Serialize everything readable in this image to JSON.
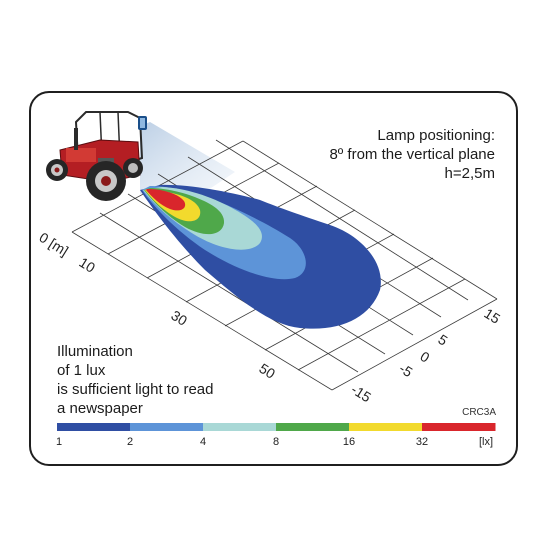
{
  "notes": {
    "lamp": [
      "Lamp positioning:",
      "8º from the vertical plane",
      "h=2,5m"
    ],
    "illumination": [
      "Illumination",
      "of 1 lux",
      "is sufficient light to read",
      "a newspaper"
    ]
  },
  "code": "CRC3A",
  "axis_distance": {
    "labels": [
      "0 [m]",
      "10",
      "30",
      "50"
    ]
  },
  "axis_lateral": {
    "labels": [
      "15",
      "5",
      "0",
      "-5",
      "-15"
    ]
  },
  "scale": {
    "values": [
      "1",
      "2",
      "4",
      "8",
      "16",
      "32"
    ],
    "unit": "[lx]",
    "colors": [
      "#2f4ea3",
      "#5d94d8",
      "#a9d8d6",
      "#4fa84a",
      "#f2da2d",
      "#d9262c"
    ]
  },
  "beam_colors": {
    "1": "#2f4ea3",
    "2": "#5d94d8",
    "4": "#a9d8d6",
    "8": "#4fa84a",
    "16": "#f2da2d",
    "32": "#d9262c"
  }
}
